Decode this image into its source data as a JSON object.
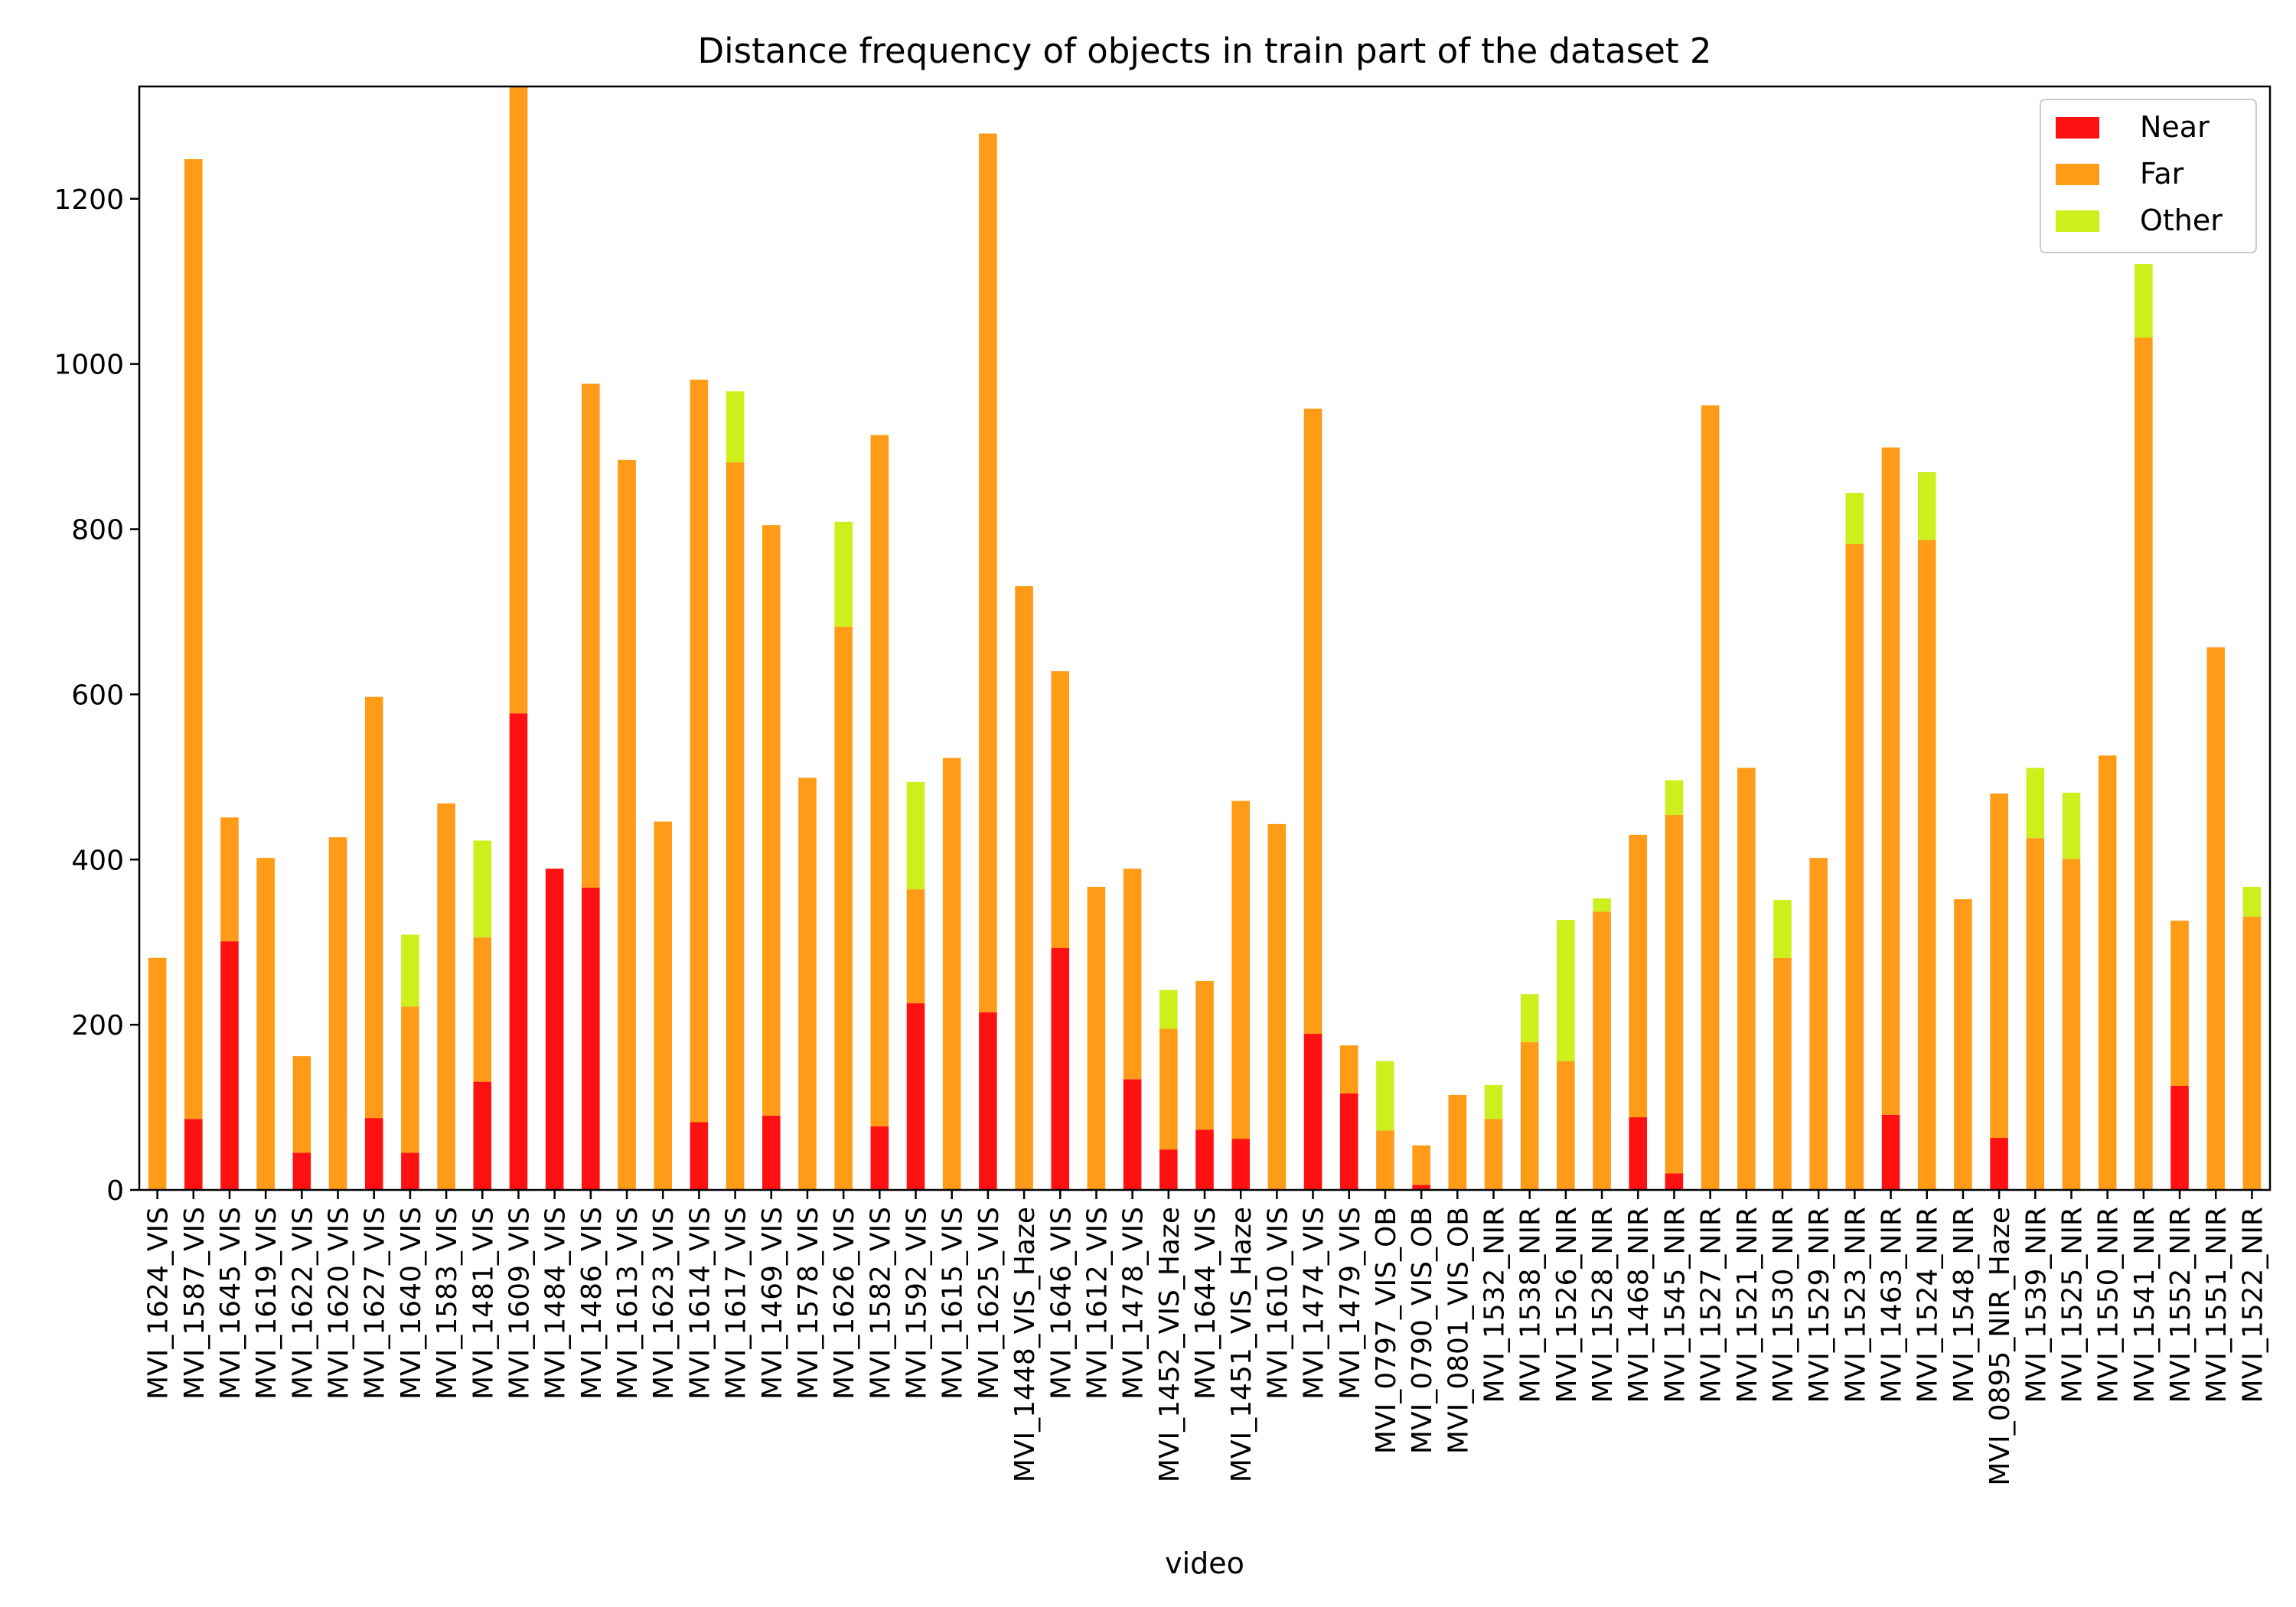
{
  "chart_data": {
    "type": "bar",
    "stacked": true,
    "title": "Distance frequency of objects in train part of the dataset 2",
    "xlabel": "video",
    "ylabel": "",
    "ylim": [
      0,
      1336
    ],
    "yticks": [
      0,
      200,
      400,
      600,
      800,
      1000,
      1200
    ],
    "legend_position": "top-right",
    "categories": [
      "MVI_1624_VIS",
      "MVI_1587_VIS",
      "MVI_1645_VIS",
      "MVI_1619_VIS",
      "MVI_1622_VIS",
      "MVI_1620_VIS",
      "MVI_1627_VIS",
      "MVI_1640_VIS",
      "MVI_1583_VIS",
      "MVI_1481_VIS",
      "MVI_1609_VIS",
      "MVI_1484_VIS",
      "MVI_1486_VIS",
      "MVI_1613_VIS",
      "MVI_1623_VIS",
      "MVI_1614_VIS",
      "MVI_1617_VIS",
      "MVI_1469_VIS",
      "MVI_1578_VIS",
      "MVI_1626_VIS",
      "MVI_1582_VIS",
      "MVI_1592_VIS",
      "MVI_1615_VIS",
      "MVI_1625_VIS",
      "MVI_1448_VIS_Haze",
      "MVI_1646_VIS",
      "MVI_1612_VIS",
      "MVI_1478_VIS",
      "MVI_1452_VIS_Haze",
      "MVI_1644_VIS",
      "MVI_1451_VIS_Haze",
      "MVI_1610_VIS",
      "MVI_1474_VIS",
      "MVI_1479_VIS",
      "MVI_0797_VIS_OB",
      "MVI_0790_VIS_OB",
      "MVI_0801_VIS_OB",
      "MVI_1532_NIR",
      "MVI_1538_NIR",
      "MVI_1526_NIR",
      "MVI_1528_NIR",
      "MVI_1468_NIR",
      "MVI_1545_NIR",
      "MVI_1527_NIR",
      "MVI_1521_NIR",
      "MVI_1530_NIR",
      "MVI_1529_NIR",
      "MVI_1523_NIR",
      "MVI_1463_NIR",
      "MVI_1524_NIR",
      "MVI_1548_NIR",
      "MVI_0895_NIR_Haze",
      "MVI_1539_NIR",
      "MVI_1525_NIR",
      "MVI_1550_NIR",
      "MVI_1541_NIR",
      "MVI_1552_NIR",
      "MVI_1551_NIR",
      "MVI_1522_NIR"
    ],
    "series": [
      {
        "name": "Near",
        "color": "#ff1111",
        "values": [
          0,
          86,
          301,
          0,
          45,
          0,
          87,
          45,
          0,
          131,
          577,
          389,
          366,
          0,
          0,
          82,
          0,
          90,
          0,
          0,
          77,
          226,
          0,
          215,
          0,
          293,
          0,
          134,
          49,
          73,
          62,
          0,
          189,
          117,
          0,
          6,
          0,
          0,
          0,
          0,
          0,
          88,
          20,
          0,
          0,
          0,
          0,
          0,
          91,
          0,
          0,
          63,
          0,
          0,
          0,
          0,
          126,
          0,
          0
        ]
      },
      {
        "name": "Far",
        "color": "#ff9b17",
        "values": [
          281,
          1162,
          150,
          402,
          117,
          427,
          510,
          177,
          468,
          175,
          759,
          0,
          610,
          884,
          446,
          899,
          881,
          715,
          499,
          682,
          837,
          138,
          523,
          1064,
          731,
          335,
          367,
          255,
          146,
          180,
          409,
          443,
          757,
          58,
          72,
          48,
          115,
          86,
          179,
          156,
          337,
          342,
          434,
          950,
          511,
          281,
          402,
          782,
          808,
          787,
          352,
          417,
          426,
          401,
          526,
          1032,
          200,
          657,
          331
        ]
      },
      {
        "name": "Other",
        "color": "#cdf01c",
        "values": [
          0,
          0,
          0,
          0,
          0,
          0,
          0,
          87,
          0,
          117,
          0,
          0,
          0,
          0,
          0,
          0,
          86,
          0,
          0,
          127,
          0,
          130,
          0,
          0,
          0,
          0,
          0,
          0,
          47,
          0,
          0,
          0,
          0,
          0,
          84,
          0,
          0,
          41,
          58,
          171,
          16,
          0,
          42,
          0,
          0,
          70,
          0,
          62,
          0,
          82,
          0,
          0,
          85,
          80,
          0,
          89,
          0,
          0,
          36
        ]
      }
    ]
  }
}
